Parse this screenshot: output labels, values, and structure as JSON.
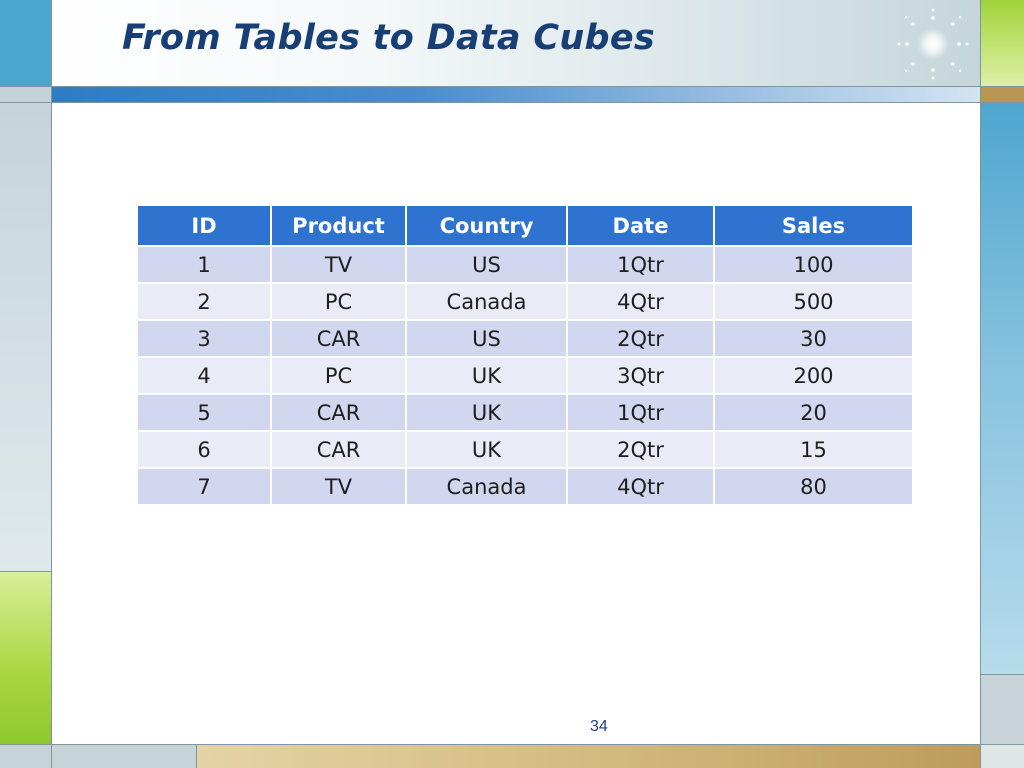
{
  "slide": {
    "title": "From Tables to Data Cubes",
    "page_number": "34"
  },
  "table": {
    "headers": [
      "ID",
      "Product",
      "Country",
      "Date",
      "Sales"
    ],
    "rows": [
      [
        "1",
        "TV",
        "US",
        "1Qtr",
        "100"
      ],
      [
        "2",
        "PC",
        "Canada",
        "4Qtr",
        "500"
      ],
      [
        "3",
        "CAR",
        "US",
        "2Qtr",
        "30"
      ],
      [
        "4",
        "PC",
        "UK",
        "3Qtr",
        "200"
      ],
      [
        "5",
        "CAR",
        "UK",
        "1Qtr",
        "20"
      ],
      [
        "6",
        "CAR",
        "UK",
        "2Qtr",
        "15"
      ],
      [
        "7",
        "TV",
        "Canada",
        "4Qtr",
        "80"
      ]
    ]
  },
  "colors": {
    "title": "#173f76",
    "header_bg": "#2e73cf",
    "row_odd": "#d0d7ee",
    "row_even": "#e9ecf6",
    "accent_bar": "#2f7bc4"
  },
  "decor": {
    "sparkle": "sparkle-icon"
  }
}
